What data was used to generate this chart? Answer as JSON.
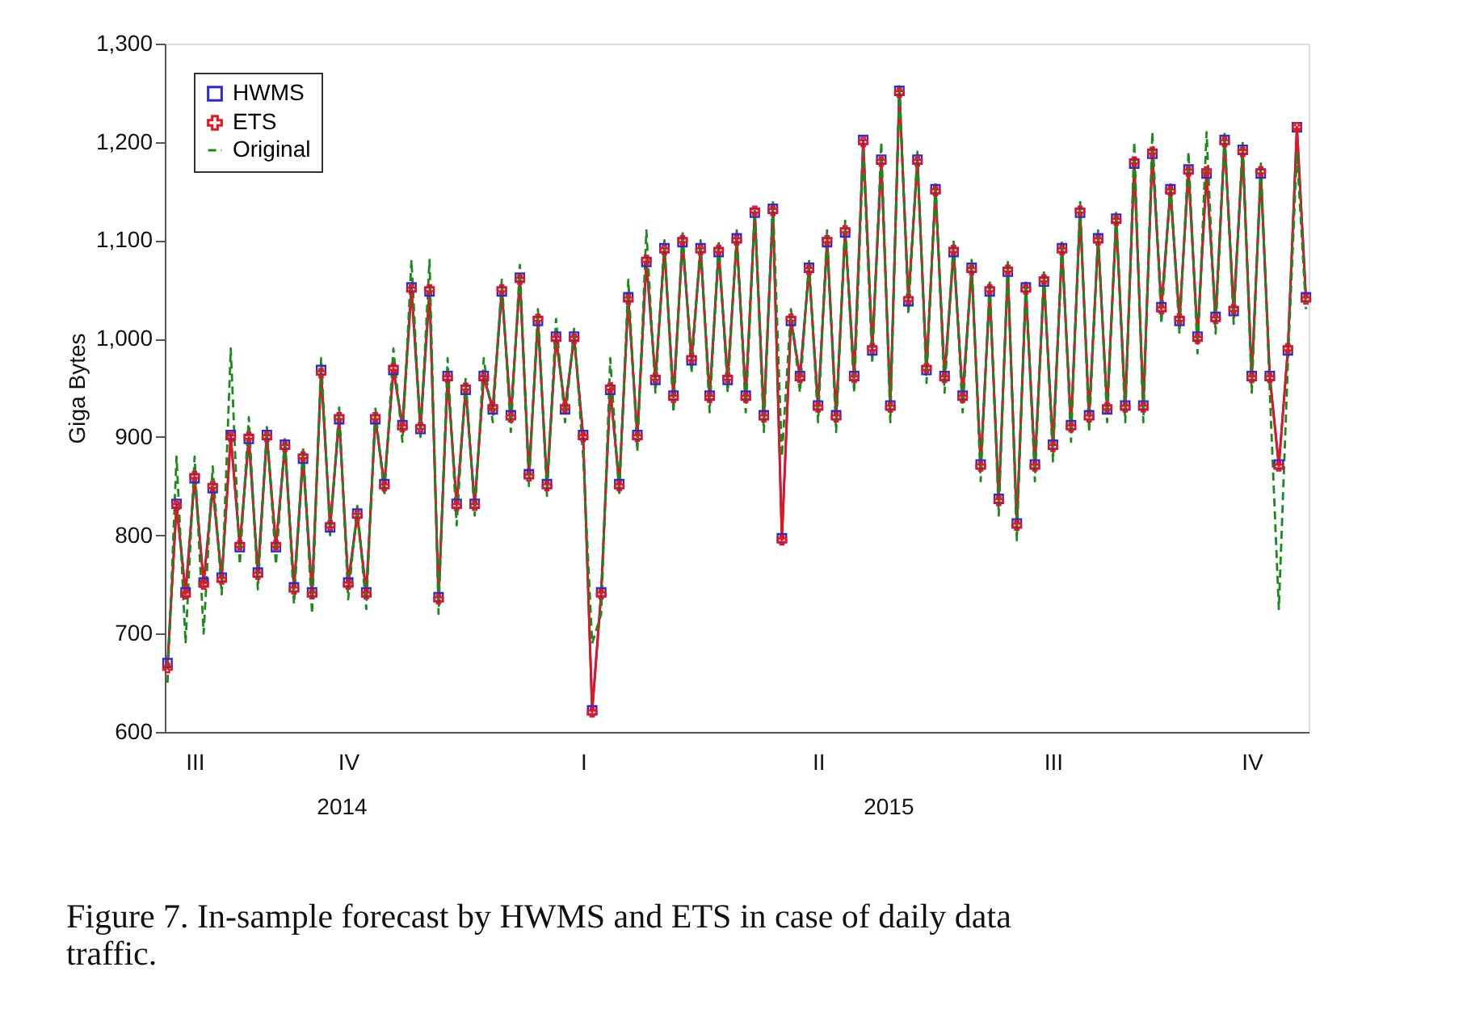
{
  "chart_data": {
    "type": "line",
    "title": "Figure 7. In-sample forecast by HWMS and ETS in case of daily data traffic.",
    "ylabel": "Giga Bytes",
    "annotations": [
      "2014",
      "2015"
    ],
    "legend": "top left",
    "grid": false,
    "categories": [
      null,
      null,
      null,
      "III",
      null,
      null,
      null,
      null,
      null,
      null,
      null,
      null,
      null,
      null,
      null,
      null,
      null,
      null,
      null,
      null,
      "IV",
      null,
      null,
      null,
      null,
      null,
      null,
      null,
      null,
      null,
      null,
      null,
      null,
      null,
      null,
      null,
      null,
      null,
      null,
      null,
      null,
      null,
      null,
      null,
      null,
      null,
      "I",
      null,
      null,
      null,
      null,
      null,
      null,
      null,
      null,
      null,
      null,
      null,
      null,
      null,
      null,
      null,
      null,
      null,
      null,
      null,
      null,
      null,
      null,
      null,
      null,
      null,
      "II",
      null,
      null,
      null,
      null,
      null,
      null,
      null,
      null,
      null,
      null,
      null,
      null,
      null,
      null,
      null,
      null,
      null,
      null,
      null,
      null,
      null,
      null,
      null,
      null,
      null,
      "III",
      null,
      null,
      null,
      null,
      null,
      null,
      null,
      null,
      null,
      null,
      null,
      null,
      null,
      null,
      null,
      null,
      null,
      null,
      null,
      null,
      null,
      "IV",
      null,
      null,
      null,
      null,
      null,
      null
    ],
    "ylim": [
      600,
      1300
    ],
    "yticks": [
      {
        "value": 600,
        "label": "600"
      },
      {
        "value": 700,
        "label": "700"
      },
      {
        "value": 800,
        "label": "800"
      },
      {
        "value": 900,
        "label": "900"
      },
      {
        "value": 1000,
        "label": "1,000"
      },
      {
        "value": 1100,
        "label": "1,100"
      },
      {
        "value": 1200,
        "label": "1,200"
      },
      {
        "value": 1300,
        "label": "1,300"
      }
    ],
    "series": [
      {
        "name": "HWMS",
        "color": "#2b2bd6",
        "marker": "square",
        "line_style": "solid",
        "values": [
          670,
          832,
          742,
          858,
          752,
          848,
          757,
          902,
          788,
          898,
          762,
          902,
          788,
          892,
          747,
          878,
          742,
          968,
          808,
          918,
          752,
          822,
          742,
          918,
          852,
          968,
          912,
          1052,
          908,
          1048,
          737,
          962,
          832,
          948,
          832,
          962,
          928,
          1048,
          922,
          1062,
          862,
          1018,
          852,
          1002,
          928,
          1002,
          902,
          622,
          742,
          948,
          852,
          1042,
          902,
          1078,
          958,
          1092,
          942,
          1098,
          978,
          1092,
          942,
          1088,
          958,
          1102,
          942,
          1128,
          922,
          1132,
          797,
          1018,
          962,
          1072,
          932,
          1098,
          922,
          1108,
          962,
          1202,
          988,
          1182,
          932,
          1252,
          1038,
          1182,
          968,
          1152,
          962,
          1088,
          942,
          1072,
          872,
          1048,
          837,
          1068,
          812,
          1052,
          872,
          1058,
          892,
          1092,
          912,
          1128,
          922,
          1102,
          928,
          1122,
          932,
          1178,
          932,
          1188,
          1032,
          1152,
          1018,
          1172,
          1002,
          1168,
          1022,
          1202,
          1028,
          1192,
          962,
          1168,
          962,
          872,
          988,
          1215,
          1042
        ]
      },
      {
        "name": "ETS",
        "color": "#e8141c",
        "marker": "cross",
        "line_style": "solid",
        "values": [
          665,
          830,
          740,
          860,
          750,
          850,
          755,
          900,
          790,
          900,
          760,
          900,
          790,
          890,
          745,
          880,
          740,
          965,
          810,
          920,
          750,
          820,
          740,
          920,
          850,
          970,
          910,
          1050,
          910,
          1050,
          735,
          960,
          830,
          950,
          830,
          960,
          930,
          1050,
          920,
          1060,
          860,
          1020,
          850,
          1000,
          930,
          1000,
          900,
          620,
          740,
          950,
          850,
          1040,
          900,
          1080,
          960,
          1090,
          940,
          1100,
          980,
          1090,
          940,
          1090,
          960,
          1100,
          940,
          1130,
          920,
          1130,
          795,
          1020,
          960,
          1070,
          930,
          1100,
          920,
          1110,
          960,
          1200,
          990,
          1180,
          930,
          1250,
          1040,
          1180,
          970,
          1150,
          960,
          1090,
          940,
          1070,
          870,
          1050,
          835,
          1070,
          810,
          1050,
          870,
          1060,
          890,
          1090,
          910,
          1130,
          920,
          1100,
          930,
          1120,
          930,
          1180,
          930,
          1190,
          1030,
          1150,
          1020,
          1170,
          1000,
          1170,
          1020,
          1200,
          1030,
          1190,
          960,
          1170,
          960,
          870,
          990,
          1215,
          1040
        ]
      },
      {
        "name": "Original",
        "color": "#1a8a1a",
        "marker": "none",
        "line_style": "dashed",
        "values": [
          650,
          880,
          690,
          880,
          700,
          870,
          740,
          990,
          770,
          920,
          745,
          910,
          770,
          900,
          730,
          890,
          720,
          980,
          800,
          930,
          735,
          830,
          725,
          930,
          840,
          990,
          895,
          1080,
          900,
          1080,
          720,
          980,
          810,
          960,
          820,
          980,
          915,
          1060,
          905,
          1075,
          850,
          1030,
          840,
          1020,
          915,
          1010,
          880,
          690,
          720,
          980,
          840,
          1060,
          885,
          1110,
          945,
          1100,
          925,
          1110,
          965,
          1100,
          925,
          1100,
          945,
          1110,
          925,
          1130,
          905,
          1140,
          880,
          1030,
          945,
          1080,
          915,
          1110,
          905,
          1120,
          945,
          1190,
          975,
          1200,
          915,
          1260,
          1025,
          1190,
          955,
          1160,
          945,
          1100,
          925,
          1080,
          855,
          1060,
          820,
          1080,
          795,
          1060,
          855,
          1070,
          875,
          1100,
          895,
          1140,
          905,
          1110,
          915,
          1130,
          915,
          1200,
          915,
          1210,
          1015,
          1160,
          1005,
          1190,
          985,
          1210,
          1005,
          1210,
          1015,
          1200,
          945,
          1180,
          945,
          725,
          975,
          1190,
          1030
        ]
      }
    ]
  }
}
